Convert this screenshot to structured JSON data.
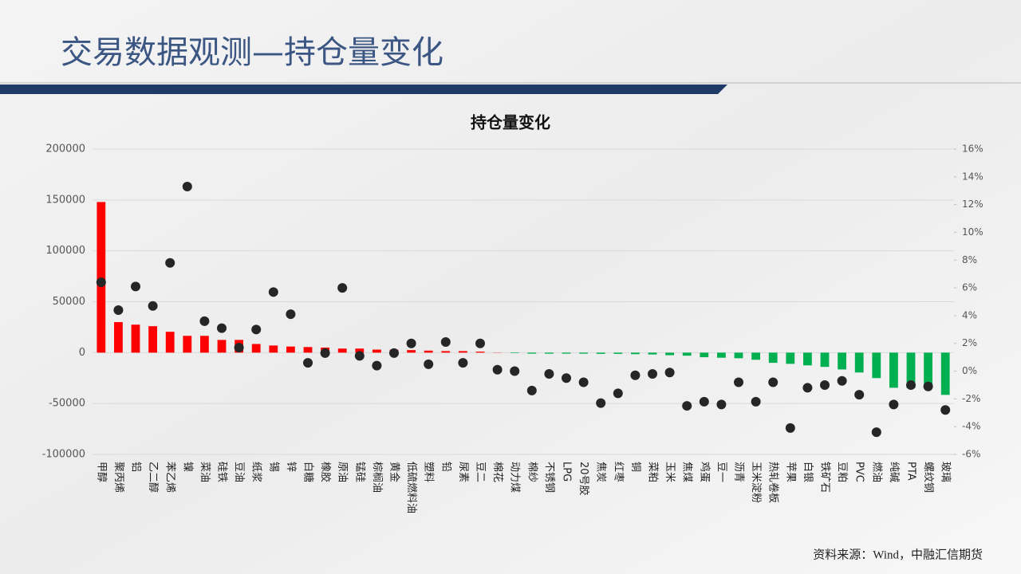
{
  "header": {
    "title": "交易数据观测—持仓量变化"
  },
  "footer": {
    "source": "资料来源：Wind，中融汇信期货"
  },
  "chart_data": {
    "type": "bar",
    "title": "持仓量变化",
    "categories": [
      "甲醇",
      "聚丙烯",
      "铝",
      "乙二醇",
      "苯乙烯",
      "镍",
      "菜油",
      "硅铁",
      "豆油",
      "纸浆",
      "锡",
      "锌",
      "白糖",
      "橡胶",
      "原油",
      "锰硅",
      "棕榈油",
      "黄金",
      "低硫燃料油",
      "塑料",
      "铅",
      "尿素",
      "豆二",
      "棉花",
      "动力煤",
      "棉纱",
      "不锈钢",
      "LPG",
      "20号胶",
      "焦炭",
      "红枣",
      "铜",
      "菜粕",
      "玉米",
      "焦煤",
      "鸡蛋",
      "豆一",
      "沥青",
      "玉米淀粉",
      "热轧卷板",
      "苹果",
      "白银",
      "铁矿石",
      "豆粕",
      "PVC",
      "燃油",
      "纯碱",
      "PTA",
      "螺纹钢",
      "玻璃"
    ],
    "series": [
      {
        "type": "bar",
        "positive_color": "#ff0000",
        "negative_color": "#00b050",
        "values": [
          148000,
          30000,
          27500,
          26000,
          20500,
          16500,
          16500,
          12500,
          12500,
          8500,
          7000,
          6000,
          5500,
          5000,
          4000,
          4000,
          3000,
          3000,
          2500,
          2000,
          1500,
          1500,
          1000,
          200,
          -500,
          -1000,
          -1000,
          -1000,
          -1000,
          -1200,
          -1200,
          -1500,
          -1800,
          -2500,
          -3000,
          -4500,
          -5000,
          -5500,
          -7000,
          -10000,
          -11000,
          -12500,
          -14000,
          -16500,
          -19500,
          -25000,
          -34500,
          -35000,
          -35000,
          -41500
        ]
      },
      {
        "type": "scatter",
        "axis": "y2",
        "color": "#262626",
        "values": [
          6.4,
          4.4,
          6.1,
          4.7,
          7.8,
          13.3,
          3.6,
          3.1,
          1.7,
          3.0,
          5.7,
          4.1,
          0.6,
          1.3,
          6.0,
          1.1,
          0.4,
          1.3,
          2.0,
          0.5,
          2.1,
          0.6,
          2.0,
          0.1,
          0,
          -1.4,
          -0.2,
          -0.5,
          -0.8,
          -2.3,
          -1.6,
          -0.3,
          -0.2,
          -0.1,
          -2.5,
          -2.2,
          -2.4,
          -0.8,
          -2.2,
          -0.8,
          -4.1,
          -1.2,
          -1.0,
          -0.7,
          -1.7,
          -4.4,
          -2.4,
          -1.0,
          -1.1,
          -2.8
        ]
      }
    ],
    "ylim": [
      -100000,
      200000
    ],
    "yticks": [
      -100000,
      -50000,
      0,
      50000,
      100000,
      150000,
      200000
    ],
    "y2lim": [
      -6,
      16
    ],
    "y2ticks": [
      {
        "value": -6,
        "label": "-6%"
      },
      {
        "value": -4,
        "label": "-4%"
      },
      {
        "value": -2,
        "label": "-2%"
      },
      {
        "value": 0,
        "label": "0%"
      },
      {
        "value": 2,
        "label": "2%"
      },
      {
        "value": 4,
        "label": "4%"
      },
      {
        "value": 6,
        "label": "6%"
      },
      {
        "value": 8,
        "label": "8%"
      },
      {
        "value": 10,
        "label": "10%"
      },
      {
        "value": 12,
        "label": "12%"
      },
      {
        "value": 14,
        "label": "14%"
      },
      {
        "value": 16,
        "label": "16%"
      }
    ],
    "grid": true
  }
}
